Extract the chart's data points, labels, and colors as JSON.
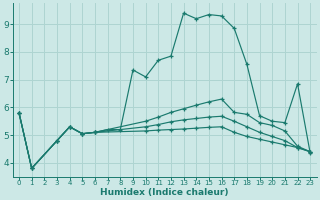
{
  "xlabel": "Humidex (Indice chaleur)",
  "bg_color": "#cce8e6",
  "grid_color": "#aed4d1",
  "line_color": "#1a7a6e",
  "xlim": [
    -0.5,
    23.5
  ],
  "ylim": [
    3.5,
    9.75
  ],
  "xticks": [
    0,
    1,
    2,
    3,
    4,
    5,
    6,
    7,
    8,
    9,
    10,
    11,
    12,
    13,
    14,
    15,
    16,
    17,
    18,
    19,
    20,
    21,
    22,
    23
  ],
  "yticks": [
    4,
    5,
    6,
    7,
    8,
    9
  ],
  "lines": [
    {
      "x": [
        0,
        1,
        3,
        4,
        5,
        6,
        7,
        8,
        9,
        10,
        11,
        12,
        13,
        14,
        15,
        16,
        17,
        18,
        19,
        20,
        21,
        22,
        23
      ],
      "y": [
        5.8,
        3.8,
        4.8,
        5.3,
        5.05,
        5.1,
        5.2,
        5.2,
        7.35,
        7.1,
        7.7,
        7.85,
        9.4,
        9.2,
        9.35,
        9.3,
        8.85,
        7.55,
        5.7,
        5.5,
        5.45,
        6.85,
        4.35
      ]
    },
    {
      "x": [
        0,
        1,
        3,
        4,
        5,
        6,
        10,
        11,
        12,
        13,
        14,
        15,
        16,
        17,
        18,
        19,
        20,
        21,
        22,
        23
      ],
      "y": [
        5.8,
        3.8,
        4.8,
        5.3,
        5.05,
        5.1,
        5.5,
        5.65,
        5.82,
        5.95,
        6.08,
        6.2,
        6.3,
        5.82,
        5.75,
        5.45,
        5.35,
        5.15,
        4.6,
        4.4
      ]
    },
    {
      "x": [
        0,
        1,
        3,
        4,
        5,
        6,
        10,
        11,
        12,
        13,
        14,
        15,
        16,
        17,
        18,
        19,
        20,
        21,
        22,
        23
      ],
      "y": [
        5.8,
        3.8,
        4.8,
        5.3,
        5.05,
        5.1,
        5.3,
        5.38,
        5.48,
        5.55,
        5.6,
        5.65,
        5.68,
        5.5,
        5.3,
        5.1,
        4.95,
        4.8,
        4.55,
        4.4
      ]
    },
    {
      "x": [
        0,
        1,
        3,
        4,
        5,
        6,
        10,
        11,
        12,
        13,
        14,
        15,
        16,
        17,
        18,
        19,
        20,
        21,
        22,
        23
      ],
      "y": [
        5.8,
        3.8,
        4.8,
        5.3,
        5.05,
        5.1,
        5.15,
        5.18,
        5.2,
        5.22,
        5.25,
        5.28,
        5.3,
        5.1,
        4.95,
        4.85,
        4.75,
        4.65,
        4.55,
        4.4
      ]
    }
  ]
}
